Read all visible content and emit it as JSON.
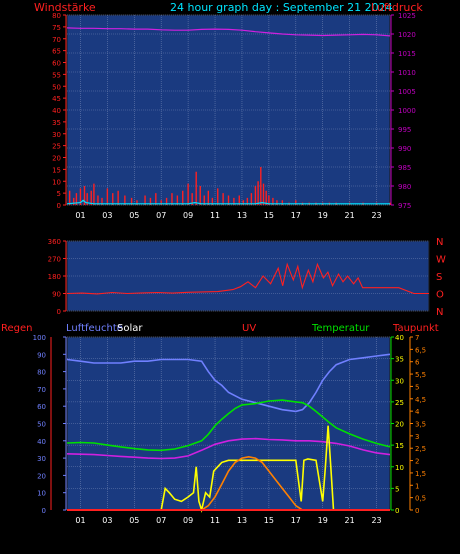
{
  "header": {
    "left_label": "Windstärke",
    "title": "24 hour graph day : September 21 2024",
    "right_label": "Luftdruck"
  },
  "colors": {
    "background": "#000000",
    "plot_fill": "#1a3a80",
    "grid": "#6a7fb0",
    "red": "#ff2020",
    "cyan": "#00e5ff",
    "magenta": "#d020e0",
    "pressure_axis": "#c000c0",
    "green": "#00e000",
    "yellow": "#ffff00",
    "orange": "#ff8000",
    "periwinkle": "#7080ff",
    "white": "#ffffff"
  },
  "chart_data": [
    {
      "type": "line",
      "name": "wind-pressure",
      "title": "24 hour graph day : September 21 2024",
      "ylabel_left": "Windstärke",
      "ylabel_right": "Luftdruck",
      "left_axis": {
        "min": 0,
        "max": 80,
        "ticks": [
          "0",
          "5",
          "10",
          "15",
          "20",
          "25",
          "30",
          "35",
          "40",
          "45",
          "50",
          "55",
          "60",
          "65",
          "70",
          "75",
          "80"
        ]
      },
      "right_axis": {
        "min": 975,
        "max": 1025,
        "ticks": [
          "975",
          "980",
          "985",
          "990",
          "995",
          "1000",
          "1005",
          "1010",
          "1015",
          "1020",
          "1025"
        ]
      },
      "x_ticks": [
        "01",
        "03",
        "05",
        "07",
        "09",
        "11",
        "13",
        "15",
        "17",
        "19",
        "21",
        "23"
      ],
      "x_range": [
        0,
        24
      ],
      "series": [
        {
          "color": "red",
          "axis": "left",
          "style": "bars",
          "x": [
            0.2,
            0.5,
            0.7,
            1.0,
            1.3,
            1.5,
            1.8,
            2.0,
            2.3,
            2.6,
            3.0,
            3.4,
            3.8,
            4.3,
            4.8,
            5.2,
            5.8,
            6.2,
            6.6,
            7.0,
            7.4,
            7.8,
            8.2,
            8.6,
            9.0,
            9.3,
            9.6,
            9.9,
            10.2,
            10.5,
            10.8,
            11.2,
            11.6,
            12.0,
            12.4,
            12.8,
            13.1,
            13.4,
            13.7,
            14.0,
            14.2,
            14.4,
            14.6,
            14.8,
            15.0,
            15.3,
            15.6,
            16.0,
            16.5,
            17.0,
            17.5,
            18.0,
            18.5,
            19.0,
            19.5,
            20.0,
            21.0,
            22.0,
            23.0,
            24.0
          ],
          "values": [
            6,
            3,
            5,
            7,
            8,
            5,
            6,
            9,
            4,
            3,
            7,
            5,
            6,
            4,
            3,
            2,
            4,
            3,
            5,
            2,
            3,
            5,
            4,
            6,
            9,
            5,
            14,
            8,
            4,
            6,
            3,
            7,
            5,
            4,
            3,
            4,
            2,
            3,
            5,
            8,
            10,
            16,
            9,
            6,
            4,
            3,
            2,
            2,
            1,
            2,
            1,
            1,
            1,
            1,
            1,
            1,
            1,
            1,
            1,
            1
          ]
        },
        {
          "color": "cyan",
          "axis": "left",
          "style": "line",
          "x": [
            0,
            1,
            1.2,
            1.4,
            2,
            3,
            4,
            5,
            6,
            7,
            8,
            9,
            9.5,
            10,
            11,
            12,
            13,
            14,
            14.5,
            15,
            16,
            17,
            18,
            19,
            20,
            21,
            22,
            23,
            24
          ],
          "values": [
            0.5,
            1,
            2,
            1,
            0.5,
            0.5,
            0.5,
            0.5,
            0.5,
            0.5,
            0.5,
            0.5,
            1,
            0.5,
            0.5,
            0.5,
            0.5,
            0.5,
            1,
            0.5,
            0.5,
            0.5,
            0.5,
            0.5,
            0.5,
            0.5,
            0.5,
            0.5,
            0.5
          ]
        },
        {
          "color": "magenta",
          "axis": "right",
          "style": "line",
          "x": [
            0,
            1,
            2,
            3,
            4,
            5,
            6,
            7,
            8,
            9,
            10,
            11,
            12,
            13,
            14,
            15,
            16,
            17,
            18,
            19,
            20,
            21,
            22,
            23,
            24
          ],
          "values": [
            1021.6,
            1021.5,
            1021.5,
            1021.4,
            1021.4,
            1021.3,
            1021.3,
            1021.1,
            1021.0,
            1021.0,
            1021.2,
            1021.3,
            1021.2,
            1021.0,
            1020.6,
            1020.3,
            1020.0,
            1019.8,
            1019.7,
            1019.6,
            1019.7,
            1019.8,
            1019.9,
            1019.8,
            1019.5
          ]
        }
      ]
    },
    {
      "type": "line",
      "name": "wind-direction",
      "left_axis": {
        "min": 0,
        "max": 360,
        "ticks": [
          "0",
          "90",
          "180",
          "270",
          "360"
        ]
      },
      "right_labels": [
        "N",
        "W",
        "S",
        "O",
        "N"
      ],
      "x_range": [
        0,
        24
      ],
      "series": [
        {
          "color": "red",
          "axis": "left",
          "style": "line",
          "x": [
            0,
            1,
            2,
            3,
            4,
            5,
            6,
            7,
            8,
            9,
            10,
            11,
            11.5,
            12,
            12.5,
            13,
            13.5,
            14,
            14.3,
            14.6,
            15,
            15.3,
            15.6,
            16,
            16.3,
            16.6,
            17,
            17.3,
            17.6,
            18,
            18.3,
            18.6,
            19,
            19.3,
            19.6,
            20,
            21,
            22,
            23,
            24
          ],
          "values": [
            90,
            92,
            88,
            95,
            90,
            93,
            95,
            92,
            96,
            98,
            100,
            110,
            125,
            150,
            120,
            180,
            140,
            220,
            130,
            240,
            160,
            230,
            120,
            210,
            150,
            240,
            170,
            200,
            130,
            190,
            150,
            180,
            140,
            170,
            120,
            120,
            120,
            120,
            90,
            90
          ]
        }
      ]
    },
    {
      "type": "line",
      "name": "humidity-solar-uv-temperature-dewpoint",
      "legend": [
        "Regen",
        "Luftfeuchte",
        "Solar",
        "UV",
        "Temperatur",
        "Taupunkt"
      ],
      "left_axis": {
        "min": 0,
        "max": 100,
        "ticks": [
          "0",
          "10",
          "20",
          "30",
          "40",
          "50",
          "60",
          "70",
          "80",
          "90",
          "100"
        ]
      },
      "right_axis_temp": {
        "min": 0,
        "max": 40,
        "ticks": [
          "0",
          "5",
          "10",
          "15",
          "20",
          "25",
          "30",
          "35",
          "40"
        ]
      },
      "right_axis_uv": {
        "min": 0,
        "max": 7,
        "ticks": [
          "0",
          "0,5",
          "1",
          "1,5",
          "2",
          "2,5",
          "3",
          "3,5",
          "4",
          "4,5",
          "5",
          "5,5",
          "6",
          "6,5",
          "7"
        ]
      },
      "x_ticks": [
        "01",
        "03",
        "05",
        "07",
        "09",
        "11",
        "13",
        "15",
        "17",
        "19",
        "21",
        "23"
      ],
      "x_range": [
        0,
        24
      ],
      "series": [
        {
          "name": "Luftfeuchte",
          "color": "periwinkle",
          "axis": "left",
          "x": [
            0,
            1,
            2,
            3,
            4,
            5,
            6,
            7,
            8,
            9,
            10,
            10.5,
            11,
            11.5,
            12,
            12.5,
            13,
            14,
            15,
            16,
            17,
            17.5,
            18,
            18.5,
            19,
            19.5,
            20,
            21,
            22,
            23,
            24
          ],
          "values": [
            87,
            86,
            85,
            85,
            85,
            86,
            86,
            87,
            87,
            87,
            86,
            80,
            75,
            72,
            68,
            66,
            64,
            62,
            60,
            58,
            57,
            58,
            62,
            68,
            75,
            80,
            84,
            87,
            88,
            89,
            90
          ]
        },
        {
          "name": "Temperatur",
          "color": "green",
          "axis": "right",
          "x": [
            0,
            1,
            2,
            3,
            4,
            5,
            6,
            7,
            8,
            9,
            10,
            10.5,
            11,
            11.5,
            12,
            12.5,
            13,
            14,
            15,
            16,
            17,
            17.5,
            18,
            18.5,
            19,
            19.5,
            20,
            21,
            22,
            23,
            24
          ],
          "values": [
            15.5,
            15.6,
            15.5,
            15.0,
            14.6,
            14.2,
            13.9,
            13.8,
            14.1,
            14.9,
            16.0,
            17.5,
            19.5,
            21.0,
            22.3,
            23.5,
            24.3,
            24.6,
            25.2,
            25.4,
            25.0,
            24.8,
            24.0,
            22.8,
            21.5,
            20.2,
            19.0,
            17.6,
            16.4,
            15.4,
            14.6
          ]
        },
        {
          "name": "Taupunkt",
          "color": "magenta",
          "axis": "right",
          "x": [
            0,
            1,
            2,
            3,
            4,
            5,
            6,
            7,
            8,
            9,
            10,
            11,
            12,
            13,
            14,
            15,
            16,
            17,
            18,
            19,
            20,
            21,
            22,
            23,
            24
          ],
          "values": [
            13.0,
            12.9,
            12.8,
            12.6,
            12.4,
            12.2,
            12.0,
            11.9,
            12.0,
            12.5,
            13.8,
            15.2,
            16.0,
            16.4,
            16.5,
            16.3,
            16.2,
            16.0,
            16.0,
            15.8,
            15.4,
            14.8,
            13.9,
            13.2,
            12.8
          ]
        },
        {
          "name": "Solar",
          "color": "yellow",
          "axis": "right",
          "x": [
            0,
            7.0,
            7.3,
            7.6,
            8.0,
            8.5,
            9.0,
            9.4,
            9.6,
            9.8,
            10.0,
            10.3,
            10.6,
            10.9,
            11.2,
            11.5,
            12.0,
            13.0,
            14.0,
            15.0,
            16.0,
            17.0,
            17.4,
            17.6,
            17.9,
            18.5,
            19.0,
            19.2,
            19.4,
            19.6,
            19.8,
            24
          ],
          "values": [
            0,
            0,
            5,
            4,
            2.5,
            2,
            3,
            4,
            10,
            2,
            0,
            4,
            3,
            9,
            10,
            11,
            11.5,
            11.5,
            11.5,
            11.5,
            11.5,
            11.5,
            2,
            11.5,
            11.8,
            11.5,
            2,
            10,
            19.5,
            10,
            0,
            0
          ]
        },
        {
          "name": "UV",
          "color": "orange",
          "axis": "right",
          "x": [
            0,
            8.5,
            9.0,
            10.0,
            10.5,
            11.0,
            11.5,
            12.0,
            12.5,
            13.0,
            13.5,
            14.0,
            14.5,
            15.0,
            15.5,
            16.0,
            16.5,
            17.0,
            17.5,
            24
          ],
          "values": [
            0,
            0,
            0,
            0,
            1,
            3,
            6,
            9,
            11,
            12,
            12.3,
            12,
            11,
            9,
            7,
            5,
            3,
            1,
            0,
            0
          ]
        },
        {
          "name": "Regen",
          "color": "red",
          "axis": "left",
          "x": [
            0,
            24
          ],
          "values": [
            0,
            0
          ]
        }
      ]
    }
  ]
}
